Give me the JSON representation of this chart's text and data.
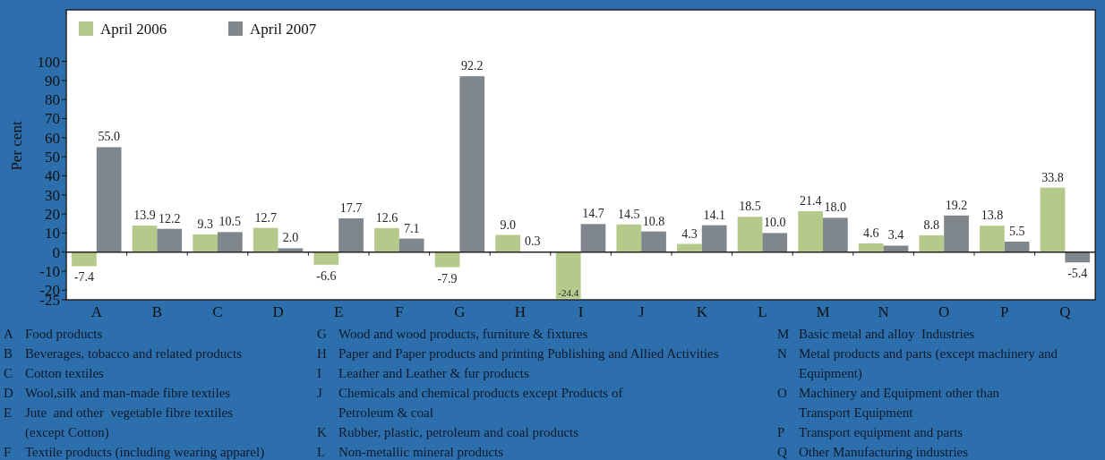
{
  "chart_data": {
    "type": "bar",
    "ylabel": "Per cent",
    "categories": [
      "A",
      "B",
      "C",
      "D",
      "E",
      "F",
      "G",
      "H",
      "I",
      "J",
      "K",
      "L",
      "M",
      "N",
      "O",
      "P",
      "Q"
    ],
    "series": [
      {
        "name": "April 2006",
        "color": "#b5c98b",
        "values": [
          -7.4,
          13.9,
          9.3,
          12.7,
          -6.6,
          12.6,
          -7.9,
          9.0,
          -24.4,
          14.5,
          4.3,
          18.5,
          21.4,
          4.6,
          8.8,
          13.8,
          33.8
        ],
        "value_labels": [
          "-7.4",
          "13.9",
          "9.3",
          "12.7",
          "-6.6",
          "12.6",
          "-7.9",
          "9.0",
          "-24.4",
          "14.5",
          "4.3",
          "18.5",
          "21.4",
          "4.6",
          "8.8",
          "13.8",
          "33.8"
        ]
      },
      {
        "name": "April 2007",
        "color": "#7f868c",
        "values": [
          55.0,
          12.2,
          10.5,
          2.0,
          17.7,
          7.1,
          92.2,
          0.3,
          14.7,
          10.8,
          14.1,
          10.0,
          18.0,
          3.4,
          19.2,
          5.5,
          -5.4
        ],
        "value_labels": [
          "55.0",
          "12.2",
          "10.5",
          "2.0",
          "17.7",
          "7.1",
          "92.2",
          "0.3",
          "14.7",
          "10.8",
          "14.1",
          "10.0",
          "18.0",
          "3.4",
          "19.2",
          "5.5",
          "-5.4"
        ]
      }
    ],
    "ylim": [
      -25,
      127
    ],
    "yticks": [
      -25,
      -20,
      -10,
      0,
      10,
      20,
      30,
      40,
      50,
      60,
      70,
      80,
      90,
      100
    ],
    "legend": "top left",
    "annotations": [
      "A Food products",
      "B Beverages, tobacco and related products",
      "C Cotton textiles",
      "D Wool,silk and man-made fibre textiles",
      "E Jute  and other  vegetable fibre textiles\n(except Cotton)",
      "F Textile products (including wearing apparel)",
      "G Wood and wood products, furniture & fixtures",
      "H Paper and Paper products and printing Publishing and Allied Activities",
      "I Leather and Leather & fur products",
      "J Chemicals and chemical products except Products of\nPetroleum & coal",
      "K Rubber, plastic, petroleum and coal products",
      "L Non-metallic mineral products",
      "M Basic metal and alloy  Industries",
      "N Metal products and parts (except machinery and\nEquipment)",
      "O Machinery and Equipment other than\nTransport Equipment",
      "P Transport equipment and parts",
      "Q Other Manufacturing industries"
    ]
  }
}
